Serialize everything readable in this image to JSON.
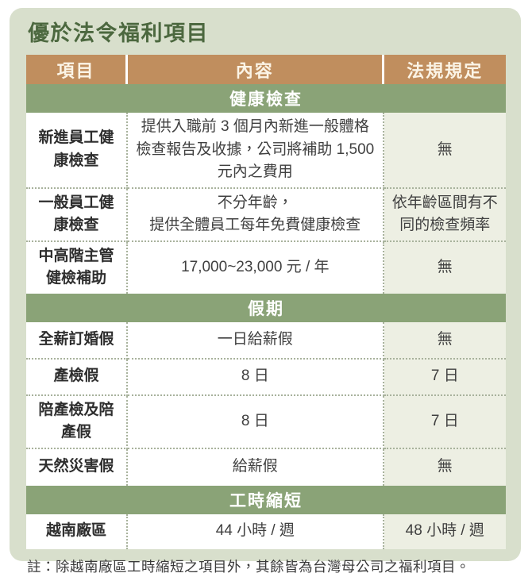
{
  "page": {
    "title": "優於法令福利項目",
    "note": "註：除越南廠區工時縮短之項目外，其餘皆為台灣母公司之福利項目。"
  },
  "colors": {
    "card_background": "#d8dfcc",
    "header_background": "#c08e5e",
    "section_background": "#8aa377",
    "regulation_cell_background": "#edefe3",
    "title_text": "#4c683f",
    "dotted_border": "#a8b29c"
  },
  "table": {
    "headers": [
      "項目",
      "內容",
      "法規規定"
    ],
    "sections": [
      {
        "title": "健康檢查",
        "rows": [
          {
            "item": "新進員工健康檢查",
            "content": "提供入職前 3 個月內新進一般體格檢查報告及收據，公司將補助 1,500 元內之費用",
            "regulation": "無"
          },
          {
            "item": "一般員工健康檢查",
            "content": "不分年齡，\n提供全體員工每年免費健康檢查",
            "regulation": "依年齡區間有不同的檢查頻率"
          },
          {
            "item": "中高階主管健檢補助",
            "content": "17,000~23,000 元 / 年",
            "regulation": "無"
          }
        ]
      },
      {
        "title": "假期",
        "rows": [
          {
            "item": "全薪訂婚假",
            "content": "一日給薪假",
            "regulation": "無"
          },
          {
            "item": "產檢假",
            "content": "8 日",
            "regulation": "7 日"
          },
          {
            "item": "陪產檢及陪產假",
            "content": "8 日",
            "regulation": "7 日"
          },
          {
            "item": "天然災害假",
            "content": "給薪假",
            "regulation": "無"
          }
        ]
      },
      {
        "title": "工時縮短",
        "rows": [
          {
            "item": "越南廠區",
            "content": "44 小時 / 週",
            "regulation": "48 小時 / 週"
          }
        ]
      }
    ]
  }
}
